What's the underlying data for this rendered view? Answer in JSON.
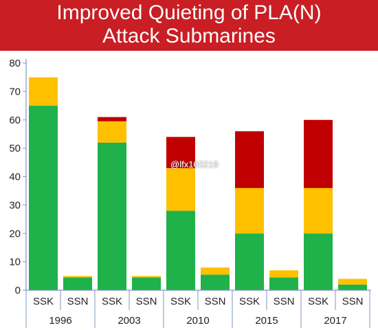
{
  "header": {
    "title_line1": "Improved Quieting of PLA(N)",
    "title_line2": "Attack Submarines"
  },
  "watermark": "@lfx160219",
  "colors": {
    "green": "#1fb14a",
    "yellow": "#ffc000",
    "red": "#c00000",
    "header_bg": "#c81e24",
    "axis": "#7f95c6"
  },
  "chart_data": {
    "type": "bar",
    "stacked": true,
    "title": "Improved Quieting of PLA(N) Attack Submarines",
    "ylim": [
      0,
      80
    ],
    "yticks": [
      0,
      10,
      20,
      30,
      40,
      50,
      60,
      70,
      80
    ],
    "groups": [
      "1996",
      "2003",
      "2010",
      "2015",
      "2017"
    ],
    "categories": [
      "SSK",
      "SSN",
      "SSK",
      "SSN",
      "SSK",
      "SSN",
      "SSK",
      "SSN",
      "SSK",
      "SSN"
    ],
    "series": [
      {
        "color": "green",
        "values": [
          65,
          4.5,
          52,
          4.5,
          28,
          5.5,
          20,
          4.5,
          20,
          2
        ]
      },
      {
        "color": "yellow",
        "values": [
          10,
          0.5,
          7.5,
          0.5,
          15,
          2.5,
          16,
          2.5,
          16,
          2
        ]
      },
      {
        "color": "red",
        "values": [
          0,
          0,
          1.5,
          0,
          11,
          0,
          20,
          0,
          24,
          0
        ]
      }
    ],
    "grid": false,
    "legend": "none"
  }
}
